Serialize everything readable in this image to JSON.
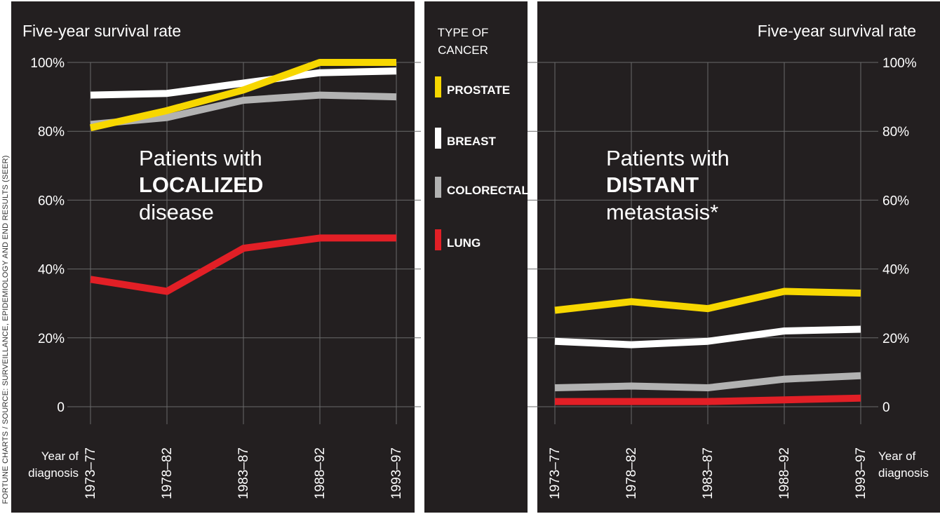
{
  "credit": "FORTUNE CHARTS / SOURCE: SURVEILLANCE, EPIDEMIOLOGY AND END RESULTS (SEER)",
  "legend": {
    "title_line1": "TYPE OF",
    "title_line2": "CANCER"
  },
  "colors": {
    "panel_bg": "#231f20",
    "grid": "#6a6a6a",
    "text": "#ffffff",
    "prostate": "#f7d700",
    "breast": "#ffffff",
    "colorectal": "#b2b2b2",
    "lung": "#e21f26"
  },
  "chart_data": [
    {
      "type": "line",
      "title": "Five-year survival rate",
      "annotation": {
        "line1": "Patients with",
        "line2": "LOCALIZED",
        "line3": "disease"
      },
      "xlabel_line1": "Year of",
      "xlabel_line2": "diagnosis",
      "categories": [
        "1973–77",
        "1978–82",
        "1983–87",
        "1988–92",
        "1993–97"
      ],
      "yticks": [
        "100%",
        "80%",
        "60%",
        "40%",
        "20%",
        "0"
      ],
      "ylim": [
        0,
        100
      ],
      "grid": true,
      "series": [
        {
          "name": "COLORECTAL",
          "key": "colorectal",
          "values": [
            82,
            84,
            89,
            90.5,
            90
          ]
        },
        {
          "name": "BREAST",
          "key": "breast",
          "values": [
            90.5,
            91,
            94,
            97,
            97.5
          ]
        },
        {
          "name": "PROSTATE",
          "key": "prostate",
          "values": [
            81,
            86,
            92,
            100,
            100
          ]
        },
        {
          "name": "LUNG",
          "key": "lung",
          "values": [
            37,
            33.5,
            46,
            49,
            49
          ]
        }
      ]
    },
    {
      "type": "line",
      "title": "Five-year survival rate",
      "annotation": {
        "line1": "Patients with",
        "line2": "DISTANT",
        "line3": "metastasis*"
      },
      "xlabel_line1": "Year of",
      "xlabel_line2": "diagnosis",
      "categories": [
        "1973–77",
        "1978–82",
        "1983–87",
        "1988–92",
        "1993–97"
      ],
      "yticks": [
        "100%",
        "80%",
        "60%",
        "40%",
        "20%",
        "0"
      ],
      "ylim": [
        0,
        100
      ],
      "grid": true,
      "series": [
        {
          "name": "PROSTATE",
          "key": "prostate",
          "values": [
            28,
            30.5,
            28.5,
            33.5,
            33
          ]
        },
        {
          "name": "BREAST",
          "key": "breast",
          "values": [
            19,
            18,
            19,
            22,
            22.5
          ]
        },
        {
          "name": "COLORECTAL",
          "key": "colorectal",
          "values": [
            5.5,
            6,
            5.5,
            8,
            9
          ]
        },
        {
          "name": "LUNG",
          "key": "lung",
          "values": [
            1.5,
            1.5,
            1.5,
            2,
            2.5
          ]
        }
      ]
    }
  ],
  "legend_items": [
    {
      "label": "PROSTATE",
      "key": "prostate"
    },
    {
      "label": "BREAST",
      "key": "breast"
    },
    {
      "label": "COLORECTAL",
      "key": "colorectal"
    },
    {
      "label": "LUNG",
      "key": "lung"
    }
  ]
}
